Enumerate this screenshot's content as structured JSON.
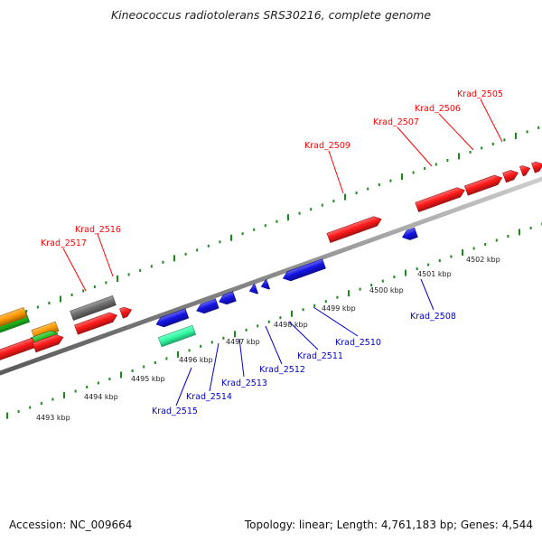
{
  "title": "Kineococcus radiotolerans SRS30216, complete genome",
  "footer": {
    "accession": "Accession: NC_009664",
    "summary": "Topology: linear; Length: 4,761,183 bp; Genes: 4,544"
  },
  "colors": {
    "forward_label": "#ff0000",
    "reverse_label": "#0000cc",
    "ticks": "#1a8a1a",
    "backbone": "#8a8a8a",
    "gene_red": "#ff1a1a",
    "gene_blue": "#1414e6",
    "gene_green": "#1fbf1f",
    "gene_orange": "#ff9900",
    "gene_gray": "#6f6f6f",
    "gene_teal": "#33ffa8"
  },
  "scale": {
    "unit": "kbp",
    "labels": [
      "4493 kbp",
      "4494 kbp",
      "4495 kbp",
      "4496 kbp",
      "4497 kbp",
      "4498 kbp",
      "4499 kbp",
      "4500 kbp",
      "4501 kbp",
      "4502 kbp"
    ]
  },
  "genes_forward": [
    {
      "label": "Krad_2517"
    },
    {
      "label": "Krad_2516"
    },
    {
      "label": "Krad_2509"
    },
    {
      "label": "Krad_2507"
    },
    {
      "label": "Krad_2506"
    },
    {
      "label": "Krad_2505"
    }
  ],
  "genes_reverse": [
    {
      "label": "Krad_2515"
    },
    {
      "label": "Krad_2514"
    },
    {
      "label": "Krad_2513"
    },
    {
      "label": "Krad_2512"
    },
    {
      "label": "Krad_2511"
    },
    {
      "label": "Krad_2510"
    },
    {
      "label": "Krad_2508"
    }
  ]
}
